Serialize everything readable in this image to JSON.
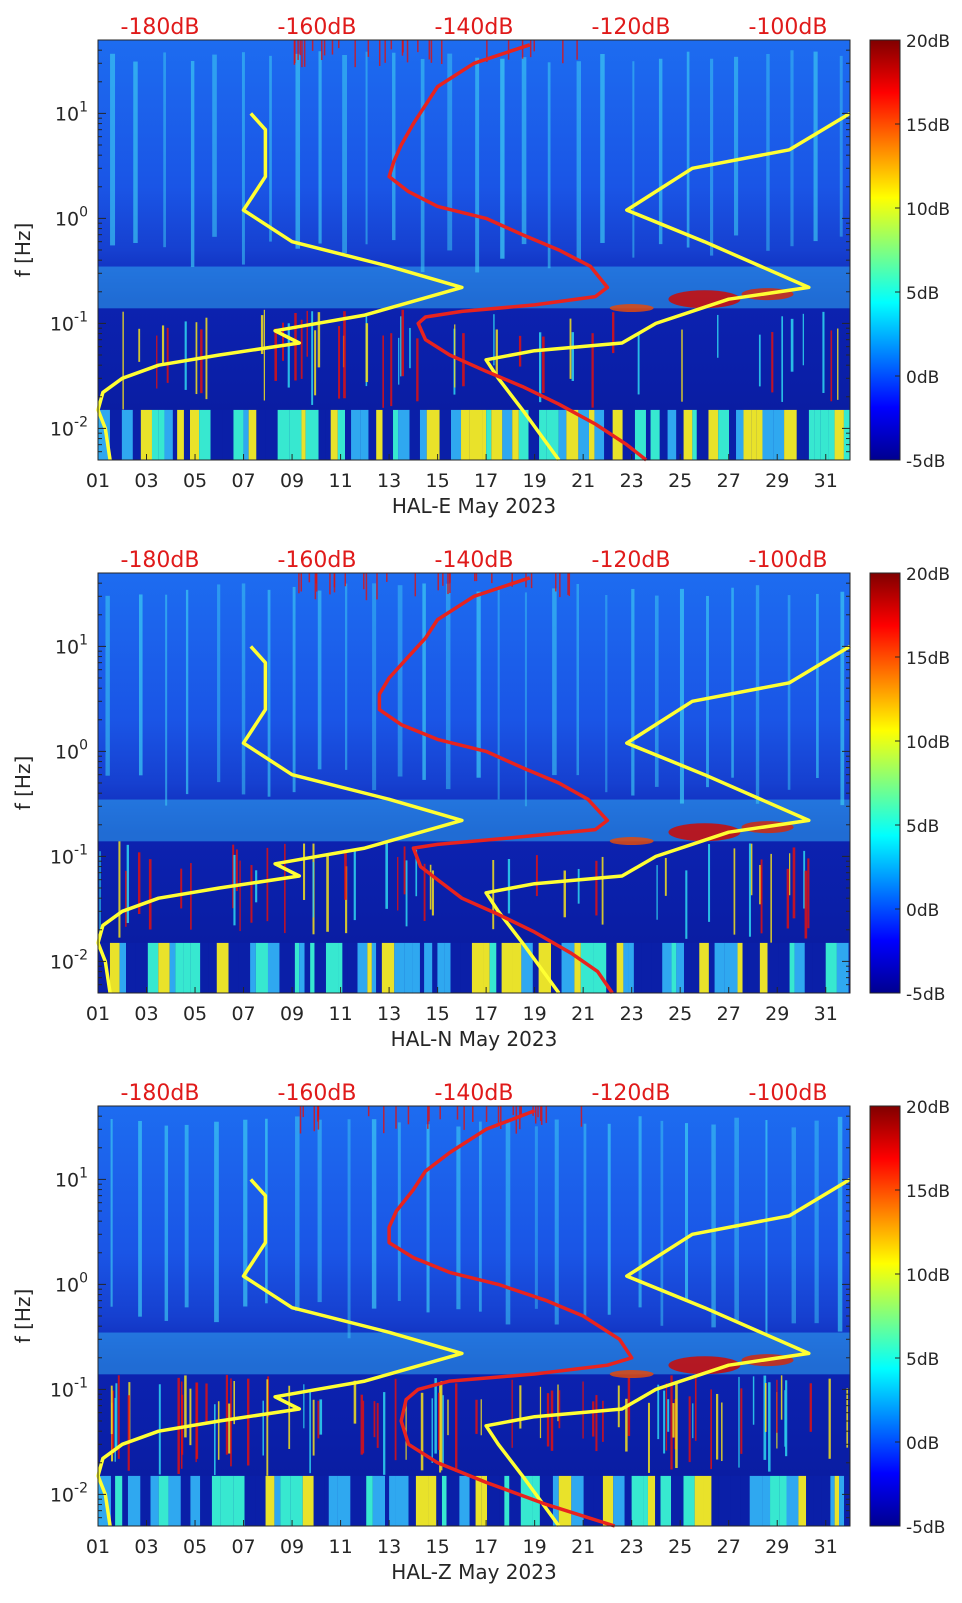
{
  "chart_data": [
    {
      "type": "heatmap",
      "title": "",
      "xlabel": "HAL-E May 2023",
      "ylabel": "f [Hz]",
      "x_ticks": [
        "01",
        "03",
        "05",
        "07",
        "09",
        "11",
        "13",
        "15",
        "17",
        "19",
        "21",
        "23",
        "25",
        "27",
        "29",
        "31"
      ],
      "x_range": [
        1,
        32
      ],
      "y_scale": "log",
      "y_ticks": [
        {
          "value": 10,
          "label": "10^1"
        },
        {
          "value": 1,
          "label": "10^0"
        },
        {
          "value": 0.1,
          "label": "10^-1"
        },
        {
          "value": 0.01,
          "label": "10^-2"
        }
      ],
      "y_range": [
        0.005,
        50
      ],
      "top_axis_labels": [
        "-180dB",
        "-160dB",
        "-140dB",
        "-120dB",
        "-100dB"
      ],
      "colorbar": {
        "labels": [
          "20dB",
          "15dB",
          "10dB",
          "5dB",
          "0dB",
          "-5dB"
        ],
        "range": [
          -5,
          20
        ],
        "colormap": "jet"
      },
      "series": [
        {
          "color": "#ffff33",
          "points": [
            [
              7.3,
              10
            ],
            [
              7.9,
              7
            ],
            [
              7.9,
              2.5
            ],
            [
              7.0,
              1.2
            ],
            [
              9,
              0.6
            ],
            [
              13,
              0.35
            ],
            [
              16,
              0.22
            ],
            [
              12,
              0.12
            ],
            [
              9.5,
              0.095
            ],
            [
              8.3,
              0.085
            ],
            [
              9.3,
              0.065
            ],
            [
              6,
              0.05
            ],
            [
              3.5,
              0.04
            ],
            [
              2,
              0.03
            ],
            [
              1.2,
              0.022
            ],
            [
              1,
              0.015
            ],
            [
              1.3,
              0.01
            ],
            [
              1.5,
              0.005
            ]
          ]
        },
        {
          "color": "#ffff33",
          "points": [
            [
              32,
              10
            ],
            [
              29.5,
              4.5
            ],
            [
              25.5,
              3
            ],
            [
              22.8,
              1.2
            ],
            [
              26,
              0.6
            ],
            [
              30.3,
              0.22
            ],
            [
              27,
              0.17
            ],
            [
              24,
              0.1
            ],
            [
              22.6,
              0.065
            ],
            [
              19,
              0.055
            ],
            [
              17,
              0.045
            ],
            [
              17.5,
              0.03
            ],
            [
              18.5,
              0.015
            ],
            [
              20,
              0.005
            ]
          ]
        },
        {
          "color": "#e8231e",
          "points": [
            [
              18.8,
              45
            ],
            [
              16.5,
              30
            ],
            [
              15,
              18
            ],
            [
              14.5,
              12
            ],
            [
              14,
              8
            ],
            [
              13.5,
              5
            ],
            [
              13.2,
              3.5
            ],
            [
              13,
              2.5
            ],
            [
              13.8,
              1.8
            ],
            [
              15,
              1.3
            ],
            [
              17,
              1
            ],
            [
              18.5,
              0.7
            ],
            [
              20,
              0.5
            ],
            [
              21.3,
              0.35
            ],
            [
              22,
              0.22
            ],
            [
              21.5,
              0.18
            ],
            [
              19,
              0.15
            ],
            [
              16,
              0.13
            ],
            [
              14.5,
              0.115
            ],
            [
              14.2,
              0.1
            ],
            [
              14.5,
              0.07
            ],
            [
              15.5,
              0.05
            ],
            [
              17,
              0.035
            ],
            [
              18.5,
              0.025
            ],
            [
              20,
              0.017
            ],
            [
              21.5,
              0.011
            ],
            [
              22.8,
              0.007
            ],
            [
              23.6,
              0.005
            ]
          ]
        }
      ]
    },
    {
      "type": "heatmap",
      "title": "",
      "xlabel": "HAL-N May 2023",
      "ylabel": "f [Hz]",
      "x_ticks": [
        "01",
        "03",
        "05",
        "07",
        "09",
        "11",
        "13",
        "15",
        "17",
        "19",
        "21",
        "23",
        "25",
        "27",
        "29",
        "31"
      ],
      "x_range": [
        1,
        32
      ],
      "y_scale": "log",
      "y_ticks": [
        {
          "value": 10,
          "label": "10^1"
        },
        {
          "value": 1,
          "label": "10^0"
        },
        {
          "value": 0.1,
          "label": "10^-1"
        },
        {
          "value": 0.01,
          "label": "10^-2"
        }
      ],
      "y_range": [
        0.005,
        50
      ],
      "top_axis_labels": [
        "-180dB",
        "-160dB",
        "-140dB",
        "-120dB",
        "-100dB"
      ],
      "colorbar": {
        "labels": [
          "20dB",
          "15dB",
          "10dB",
          "5dB",
          "0dB",
          "-5dB"
        ],
        "range": [
          -5,
          20
        ],
        "colormap": "jet"
      },
      "series": [
        {
          "color": "#ffff33",
          "points": [
            [
              7.3,
              10
            ],
            [
              7.9,
              7
            ],
            [
              7.9,
              2.5
            ],
            [
              7.0,
              1.2
            ],
            [
              9,
              0.6
            ],
            [
              13,
              0.35
            ],
            [
              16,
              0.22
            ],
            [
              12,
              0.12
            ],
            [
              9.5,
              0.095
            ],
            [
              8.3,
              0.085
            ],
            [
              9.3,
              0.065
            ],
            [
              6,
              0.05
            ],
            [
              3.5,
              0.04
            ],
            [
              2,
              0.03
            ],
            [
              1.2,
              0.022
            ],
            [
              1,
              0.015
            ],
            [
              1.3,
              0.01
            ],
            [
              1.5,
              0.005
            ]
          ]
        },
        {
          "color": "#ffff33",
          "points": [
            [
              32,
              10
            ],
            [
              29.5,
              4.5
            ],
            [
              25.5,
              3
            ],
            [
              22.8,
              1.2
            ],
            [
              26,
              0.6
            ],
            [
              30.3,
              0.22
            ],
            [
              27,
              0.17
            ],
            [
              24,
              0.1
            ],
            [
              22.6,
              0.065
            ],
            [
              19,
              0.055
            ],
            [
              17,
              0.045
            ],
            [
              17.5,
              0.03
            ],
            [
              18.5,
              0.015
            ],
            [
              20,
              0.005
            ]
          ]
        },
        {
          "color": "#e8231e",
          "points": [
            [
              18.8,
              45
            ],
            [
              16.5,
              30
            ],
            [
              15,
              18
            ],
            [
              14.5,
              12
            ],
            [
              13.8,
              8
            ],
            [
              13,
              5
            ],
            [
              12.6,
              3.5
            ],
            [
              12.6,
              2.5
            ],
            [
              13.5,
              1.8
            ],
            [
              15,
              1.3
            ],
            [
              17,
              1
            ],
            [
              18.5,
              0.7
            ],
            [
              20,
              0.5
            ],
            [
              21.2,
              0.35
            ],
            [
              22,
              0.22
            ],
            [
              21.5,
              0.18
            ],
            [
              18,
              0.15
            ],
            [
              15,
              0.13
            ],
            [
              14,
              0.12
            ],
            [
              14.3,
              0.08
            ],
            [
              15,
              0.06
            ],
            [
              16,
              0.04
            ],
            [
              17.5,
              0.028
            ],
            [
              19,
              0.019
            ],
            [
              20.5,
              0.012
            ],
            [
              21.6,
              0.008
            ],
            [
              22.2,
              0.005
            ]
          ]
        }
      ]
    },
    {
      "type": "heatmap",
      "title": "",
      "xlabel": "HAL-Z May 2023",
      "ylabel": "f [Hz]",
      "x_ticks": [
        "01",
        "03",
        "05",
        "07",
        "09",
        "11",
        "13",
        "15",
        "17",
        "19",
        "21",
        "23",
        "25",
        "27",
        "29",
        "31"
      ],
      "x_range": [
        1,
        32
      ],
      "y_scale": "log",
      "y_ticks": [
        {
          "value": 10,
          "label": "10^1"
        },
        {
          "value": 1,
          "label": "10^0"
        },
        {
          "value": 0.1,
          "label": "10^-1"
        },
        {
          "value": 0.01,
          "label": "10^-2"
        }
      ],
      "y_range": [
        0.005,
        50
      ],
      "top_axis_labels": [
        "-180dB",
        "-160dB",
        "-140dB",
        "-120dB",
        "-100dB"
      ],
      "colorbar": {
        "labels": [
          "20dB",
          "15dB",
          "10dB",
          "5dB",
          "0dB",
          "-5dB"
        ],
        "range": [
          -5,
          20
        ],
        "colormap": "jet"
      },
      "series": [
        {
          "color": "#ffff33",
          "points": [
            [
              7.3,
              10
            ],
            [
              7.9,
              7
            ],
            [
              7.9,
              2.5
            ],
            [
              7.0,
              1.2
            ],
            [
              9,
              0.6
            ],
            [
              13,
              0.35
            ],
            [
              16,
              0.22
            ],
            [
              12,
              0.12
            ],
            [
              9.5,
              0.095
            ],
            [
              8.3,
              0.085
            ],
            [
              9.3,
              0.065
            ],
            [
              6,
              0.05
            ],
            [
              3.5,
              0.04
            ],
            [
              2,
              0.03
            ],
            [
              1.2,
              0.022
            ],
            [
              1,
              0.015
            ],
            [
              1.3,
              0.01
            ],
            [
              1.5,
              0.005
            ]
          ]
        },
        {
          "color": "#ffff33",
          "points": [
            [
              32,
              10
            ],
            [
              29.5,
              4.5
            ],
            [
              25.5,
              3
            ],
            [
              22.8,
              1.2
            ],
            [
              26,
              0.6
            ],
            [
              30.3,
              0.22
            ],
            [
              27,
              0.17
            ],
            [
              24,
              0.1
            ],
            [
              22.6,
              0.065
            ],
            [
              19,
              0.055
            ],
            [
              17,
              0.045
            ],
            [
              17.5,
              0.03
            ],
            [
              18.5,
              0.015
            ],
            [
              20,
              0.005
            ]
          ]
        },
        {
          "color": "#e8231e",
          "points": [
            [
              19,
              45
            ],
            [
              17,
              30
            ],
            [
              15.5,
              18
            ],
            [
              14.5,
              12
            ],
            [
              14,
              8
            ],
            [
              13.3,
              5
            ],
            [
              13,
              3.5
            ],
            [
              13,
              2.5
            ],
            [
              14,
              1.8
            ],
            [
              15.5,
              1.3
            ],
            [
              17.5,
              1
            ],
            [
              19.5,
              0.7
            ],
            [
              21,
              0.5
            ],
            [
              22.5,
              0.3
            ],
            [
              23,
              0.2
            ],
            [
              22,
              0.17
            ],
            [
              19,
              0.14
            ],
            [
              15.5,
              0.12
            ],
            [
              14.2,
              0.1
            ],
            [
              13.7,
              0.08
            ],
            [
              13.5,
              0.05
            ],
            [
              13.8,
              0.03
            ],
            [
              15,
              0.02
            ],
            [
              17,
              0.013
            ],
            [
              19.5,
              0.008
            ],
            [
              22.3,
              0.005
            ]
          ]
        }
      ]
    }
  ]
}
